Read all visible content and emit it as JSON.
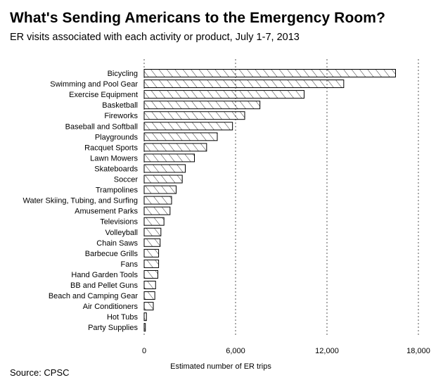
{
  "chart_data": {
    "type": "bar",
    "orientation": "horizontal",
    "title": "What's Sending Americans to the Emergency Room?",
    "subtitle": "ER visits associated with each activity or product, July 1-7, 2013",
    "source": "Source: CPSC",
    "xlabel": "Estimated number of ER trips",
    "ylabel": "",
    "xlim": [
      0,
      18000
    ],
    "xticks": [
      0,
      6000,
      12000,
      18000
    ],
    "xtick_labels": [
      "0",
      "6,000",
      "12,000",
      "18,000"
    ],
    "grid": "vertical dotted",
    "categories": [
      "Bicycling",
      "Swimming and Pool Gear",
      "Exercise Equipment",
      "Basketball",
      "Fireworks",
      "Baseball and Softball",
      "Playgrounds",
      "Racquet Sports",
      "Lawn Mowers",
      "Skateboards",
      "Soccer",
      "Trampolines",
      "Water Skiing, Tubing, and Surfing",
      "Amusement Parks",
      "Televisions",
      "Volleyball",
      "Chain Saws",
      "Barbecue Grills",
      "Fans",
      "Hand Garden Tools",
      "BB and Pellet Guns",
      "Beach and Camping Gear",
      "Air Conditioners",
      "Hot Tubs",
      "Party Supplies"
    ],
    "values": [
      16500,
      13100,
      10500,
      7600,
      6600,
      5800,
      4800,
      4100,
      3300,
      2700,
      2500,
      2100,
      1800,
      1700,
      1300,
      1100,
      1050,
      950,
      950,
      900,
      750,
      700,
      600,
      150,
      80
    ],
    "colors": {
      "bar_fill": "#ffffff",
      "bar_stroke": "#000000",
      "hatch": "#000000",
      "grid": "#555555"
    }
  }
}
